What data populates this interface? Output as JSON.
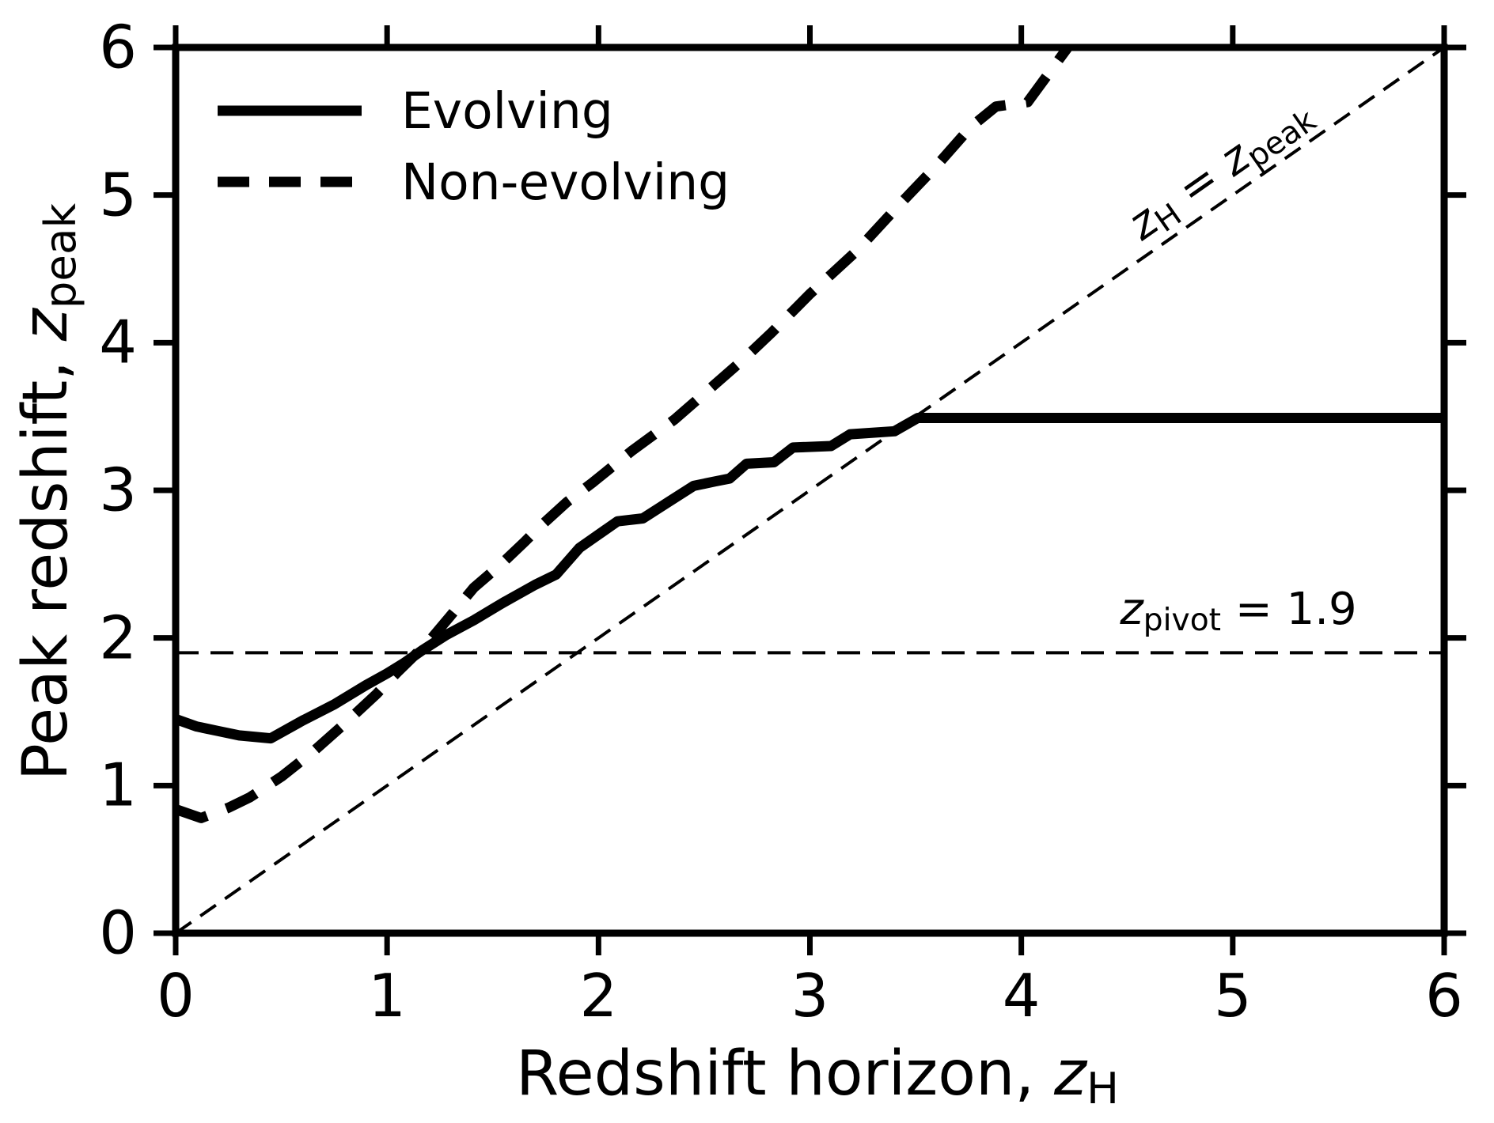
{
  "chart_data": {
    "type": "line",
    "title": "",
    "xlabel": "Redshift horizon, z_H",
    "ylabel": "Peak redshift, z_peak",
    "xlim": [
      0,
      6
    ],
    "ylim": [
      0,
      6
    ],
    "xticks": [
      0,
      1,
      2,
      3,
      4,
      5,
      6
    ],
    "yticks": [
      0,
      1,
      2,
      3,
      4,
      5,
      6
    ],
    "grid": false,
    "legend_position": "upper-left",
    "series": [
      {
        "name": "Evolving",
        "line": "solid",
        "color": "#000000",
        "points": [
          [
            0,
            1.45
          ],
          [
            0.1,
            1.4
          ],
          [
            0.2,
            1.37
          ],
          [
            0.3,
            1.34
          ],
          [
            0.45,
            1.32
          ],
          [
            0.6,
            1.44
          ],
          [
            0.75,
            1.55
          ],
          [
            0.9,
            1.68
          ],
          [
            1.0,
            1.76
          ],
          [
            1.08,
            1.83
          ],
          [
            1.17,
            1.92
          ],
          [
            1.28,
            2.02
          ],
          [
            1.41,
            2.12
          ],
          [
            1.55,
            2.24
          ],
          [
            1.7,
            2.36
          ],
          [
            1.8,
            2.43
          ],
          [
            1.91,
            2.61
          ],
          [
            2.09,
            2.79
          ],
          [
            2.21,
            2.81
          ],
          [
            2.33,
            2.92
          ],
          [
            2.45,
            3.03
          ],
          [
            2.55,
            3.06
          ],
          [
            2.62,
            3.08
          ],
          [
            2.7,
            3.18
          ],
          [
            2.83,
            3.19
          ],
          [
            2.92,
            3.29
          ],
          [
            3.1,
            3.3
          ],
          [
            3.19,
            3.38
          ],
          [
            3.4,
            3.4
          ],
          [
            3.51,
            3.49
          ],
          [
            6,
            3.49
          ]
        ]
      },
      {
        "name": "Non-evolving",
        "line": "dashed",
        "color": "#000000",
        "points": [
          [
            0,
            0.84
          ],
          [
            0.12,
            0.78
          ],
          [
            0.25,
            0.85
          ],
          [
            0.35,
            0.92
          ],
          [
            0.5,
            1.06
          ],
          [
            0.65,
            1.23
          ],
          [
            0.8,
            1.42
          ],
          [
            0.95,
            1.62
          ],
          [
            1.05,
            1.77
          ],
          [
            1.2,
            1.98
          ],
          [
            1.3,
            2.15
          ],
          [
            1.41,
            2.34
          ],
          [
            1.54,
            2.5
          ],
          [
            1.65,
            2.65
          ],
          [
            1.72,
            2.75
          ],
          [
            1.85,
            2.92
          ],
          [
            1.97,
            3.05
          ],
          [
            2.16,
            3.27
          ],
          [
            2.36,
            3.48
          ],
          [
            2.52,
            3.68
          ],
          [
            2.68,
            3.88
          ],
          [
            2.82,
            4.07
          ],
          [
            3.0,
            4.33
          ],
          [
            3.22,
            4.62
          ],
          [
            3.42,
            4.93
          ],
          [
            3.6,
            5.2
          ],
          [
            3.76,
            5.46
          ],
          [
            3.88,
            5.6
          ],
          [
            4.03,
            5.63
          ],
          [
            4.22,
            6.0
          ]
        ]
      }
    ],
    "reference_lines": [
      {
        "kind": "diagonal",
        "from": [
          0,
          0
        ],
        "to": [
          6,
          6
        ],
        "style": "thin-dashed",
        "label": "z_H = z_peak"
      },
      {
        "kind": "horizontal",
        "y": 1.9,
        "style": "thin-dashed",
        "label": "z_pivot = 1.9"
      }
    ]
  },
  "labels": {
    "xlabel": {
      "text": "Redshift horizon, ",
      "var": "z",
      "sub": "H"
    },
    "ylabel": {
      "text": "Peak redshift, ",
      "var": "z",
      "sub": "peak"
    },
    "legend": {
      "evolving": "Evolving",
      "non_evolving": "Non-evolving"
    },
    "annotations": {
      "diagonal": {
        "var1": "z",
        "sub1": "H",
        "eq": " = ",
        "var2": "z",
        "sub2": "peak"
      },
      "pivot": {
        "var": "z",
        "sub": "pivot",
        "rest": " = 1.9"
      }
    }
  },
  "colors": {
    "line": "#000000",
    "background": "#ffffff"
  }
}
